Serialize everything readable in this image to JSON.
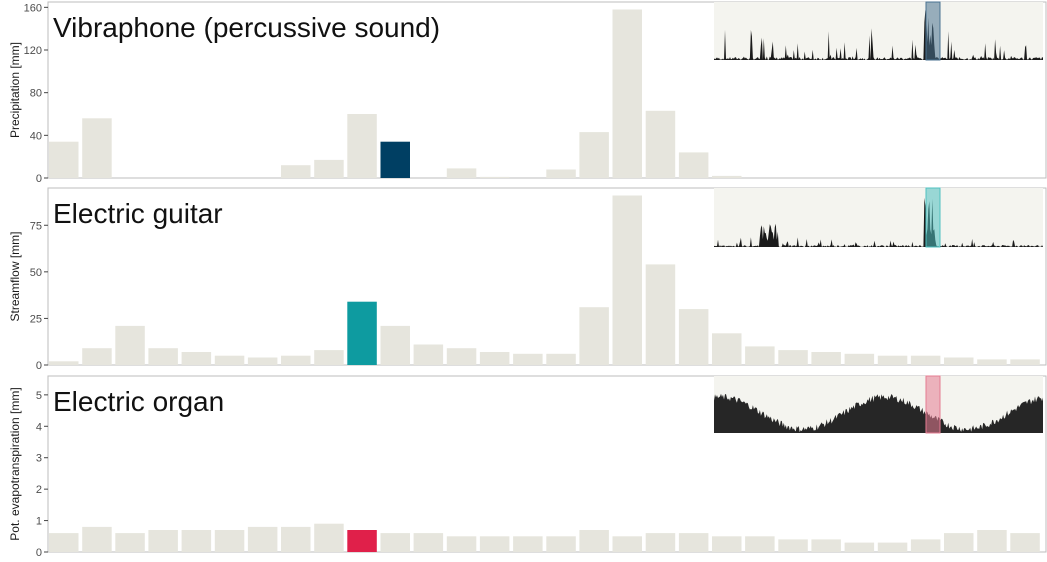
{
  "chart_data": [
    {
      "type": "bar",
      "title": "Vibraphone (percussive sound)",
      "ylabel": "Precipitation [mm]",
      "ylim": [
        0,
        165
      ],
      "yticks": [
        0,
        40,
        80,
        120,
        160
      ],
      "values": [
        34,
        56,
        0,
        0,
        0,
        0,
        0,
        12,
        17,
        60,
        34,
        0,
        9,
        1,
        0,
        8,
        43,
        158,
        63,
        24,
        2,
        0,
        0,
        0,
        0,
        0,
        0,
        0,
        0,
        0,
        0
      ],
      "highlight_index": 10,
      "highlight_color": "#003f63",
      "bar_color": "#e6e5dd",
      "inset": {
        "type": "spikes",
        "color": "#1a1a1a",
        "background": "#f4f4ef",
        "window_color": "#4a7290"
      }
    },
    {
      "type": "bar",
      "title": "Electric guitar",
      "ylabel": "Streamflow [mm]",
      "ylim": [
        0,
        95
      ],
      "yticks": [
        0,
        25,
        50,
        75
      ],
      "values": [
        2,
        9,
        21,
        9,
        7,
        5,
        4,
        5,
        8,
        34,
        21,
        11,
        9,
        7,
        6,
        6,
        31,
        91,
        54,
        30,
        17,
        10,
        8,
        7,
        6,
        5,
        5,
        4,
        3,
        3
      ],
      "highlight_index": 9,
      "highlight_color": "#0e9ba0",
      "bar_color": "#e6e5dd",
      "inset": {
        "type": "spikes-decay",
        "color": "#1a1a1a",
        "background": "#f4f4ef",
        "window_color": "#4fc0c0"
      }
    },
    {
      "type": "bar",
      "title": "Electric organ",
      "ylabel": "Pot. evapotranspiration [mm]",
      "ylim": [
        0,
        5.6
      ],
      "yticks": [
        0,
        1,
        2,
        3,
        4,
        5
      ],
      "values": [
        0.6,
        0.8,
        0.6,
        0.7,
        0.7,
        0.7,
        0.8,
        0.8,
        0.9,
        0.7,
        0.6,
        0.6,
        0.5,
        0.5,
        0.5,
        0.5,
        0.7,
        0.5,
        0.6,
        0.6,
        0.5,
        0.5,
        0.4,
        0.4,
        0.3,
        0.3,
        0.4,
        0.6,
        0.7,
        0.6
      ],
      "highlight_index": 9,
      "highlight_color": "#e0204a",
      "bar_color": "#e6e5dd",
      "inset": {
        "type": "seasonal",
        "color": "#262626",
        "background": "#f4f4ef",
        "window_color": "#e57c92"
      }
    }
  ]
}
